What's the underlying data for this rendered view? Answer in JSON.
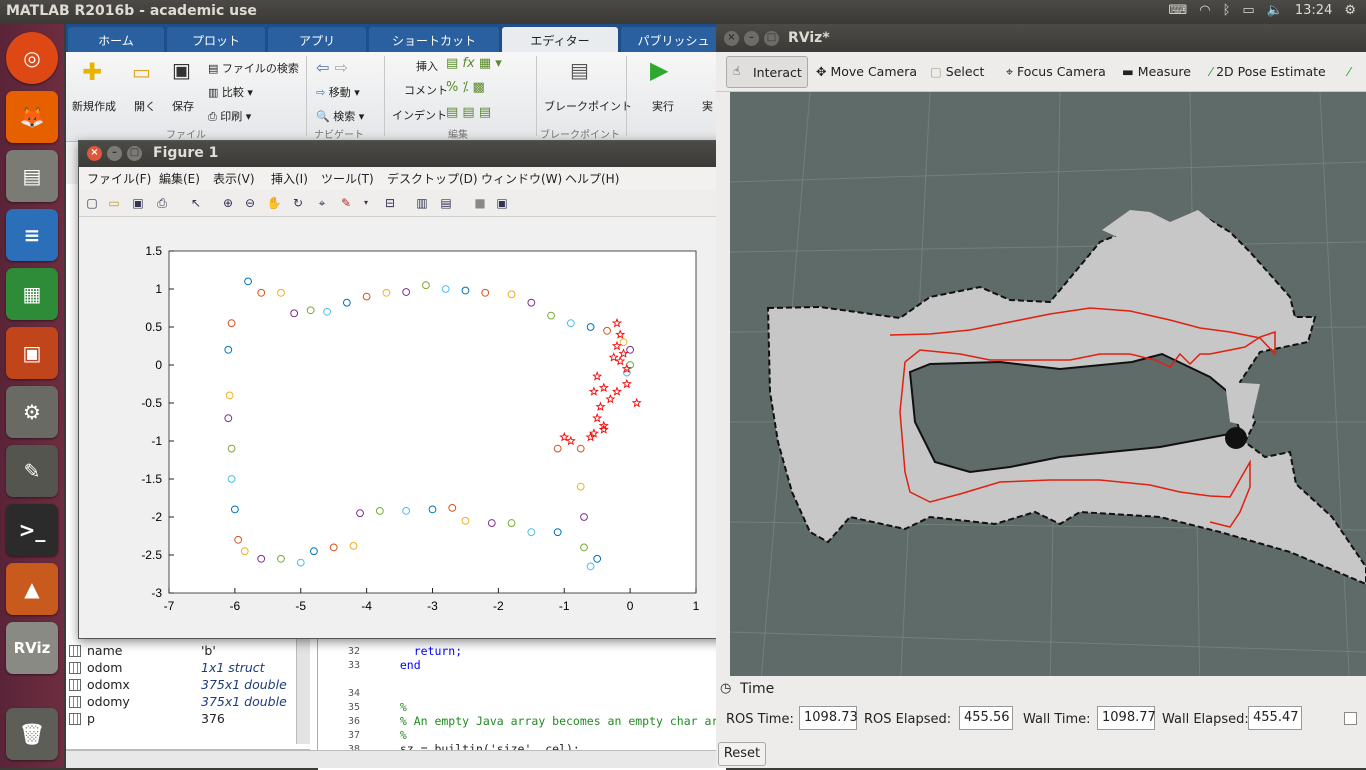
{
  "topbar": {
    "title": "MATLAB R2016b - academic use",
    "clock": "13:24",
    "tray_icons": [
      "keyboard-icon",
      "wifi-icon",
      "bluetooth-icon",
      "battery-icon",
      "volume-icon"
    ]
  },
  "launcher": {
    "items": [
      "ubuntu",
      "firefox",
      "files",
      "writer",
      "calc",
      "impress",
      "settings",
      "text-editor",
      "terminal",
      "matlab",
      "rviz",
      "trash"
    ],
    "rviz_label": "RViz"
  },
  "matlab": {
    "tabs": [
      "ホーム",
      "プロット",
      "アプリ",
      "ショートカット",
      "エディター",
      "パブリッシュ"
    ],
    "active_tab": "エディター",
    "ribbon": {
      "new": "新規作成",
      "open": "開く",
      "save": "保存",
      "find_files": "ファイルの検索",
      "compare": "比較",
      "print": "印刷",
      "goto": "移動",
      "find": "検索",
      "insert": "挿入",
      "comment": "コメント",
      "indent": "インデント",
      "breakpoints": "ブレークポイント",
      "run": "実行",
      "run_advance": "実",
      "group_file": "ファイル",
      "group_nav": "ナビゲート",
      "group_edit": "編集",
      "group_bp": "ブレークポイント"
    },
    "workspace": [
      {
        "name": "name",
        "value": "'b'",
        "type": "char"
      },
      {
        "name": "odom",
        "value": "1x1 struct",
        "type": "struct"
      },
      {
        "name": "odomx",
        "value": "375x1 double",
        "type": "double"
      },
      {
        "name": "odomy",
        "value": "375x1 double",
        "type": "double"
      },
      {
        "name": "p",
        "value": "376",
        "type": "double"
      }
    ],
    "editor_lines": [
      {
        "n": "32",
        "code": "    return;"
      },
      {
        "n": "33",
        "code": "  end"
      },
      {
        "n": "34",
        "code": ""
      },
      {
        "n": "35",
        "code": "  %"
      },
      {
        "n": "36",
        "code": "  % An empty Java array becomes an empty char arr"
      },
      {
        "n": "37",
        "code": "  %"
      },
      {
        "n": "38",
        "code": "  sz = builtin('size', cel);"
      }
    ]
  },
  "figure": {
    "title": "Figure 1",
    "menu": [
      "ファイル(F)",
      "編集(E)",
      "表示(V)",
      "挿入(I)",
      "ツール(T)",
      "デスクトップ(D)",
      "ウィンドウ(W)",
      "ヘルプ(H)"
    ]
  },
  "chart_data": {
    "type": "scatter",
    "xlim": [
      -7,
      1
    ],
    "ylim": [
      -3,
      1.5
    ],
    "xticks": [
      "-7",
      "-6",
      "-5",
      "-4",
      "-3",
      "-2",
      "-1",
      "0",
      "1"
    ],
    "yticks": [
      "1.5",
      "1",
      "0.5",
      "0",
      "-0.5",
      "-1",
      "-1.5",
      "-2",
      "-2.5",
      "-3"
    ],
    "series": [
      {
        "marker": "circle",
        "colors": [
          "#0072bd",
          "#d95319",
          "#edb120",
          "#7e2f8e",
          "#77ac30",
          "#4dbeee"
        ],
        "points": [
          [
            -5.8,
            1.1
          ],
          [
            -5.6,
            0.95
          ],
          [
            -5.3,
            0.95
          ],
          [
            -5.1,
            0.68
          ],
          [
            -4.85,
            0.72
          ],
          [
            -4.6,
            0.7
          ],
          [
            -4.3,
            0.82
          ],
          [
            -4.0,
            0.9
          ],
          [
            -3.7,
            0.95
          ],
          [
            -3.4,
            0.96
          ],
          [
            -3.1,
            1.05
          ],
          [
            -2.8,
            1.0
          ],
          [
            -2.5,
            0.98
          ],
          [
            -2.2,
            0.95
          ],
          [
            -1.8,
            0.93
          ],
          [
            -1.5,
            0.82
          ],
          [
            -1.2,
            0.65
          ],
          [
            -0.9,
            0.55
          ],
          [
            -0.6,
            0.5
          ],
          [
            -0.35,
            0.45
          ],
          [
            -0.1,
            0.3
          ],
          [
            0.0,
            0.2
          ],
          [
            0.0,
            0.0
          ],
          [
            -0.05,
            -0.1
          ],
          [
            -6.1,
            0.2
          ],
          [
            -6.05,
            0.55
          ],
          [
            -6.08,
            -0.4
          ],
          [
            -6.1,
            -0.7
          ],
          [
            -6.05,
            -1.1
          ],
          [
            -6.05,
            -1.5
          ],
          [
            -6.0,
            -1.9
          ],
          [
            -5.95,
            -2.3
          ],
          [
            -5.85,
            -2.45
          ],
          [
            -5.6,
            -2.55
          ],
          [
            -5.3,
            -2.55
          ],
          [
            -5.0,
            -2.6
          ],
          [
            -4.8,
            -2.45
          ],
          [
            -4.5,
            -2.4
          ],
          [
            -4.2,
            -2.38
          ],
          [
            -4.1,
            -1.95
          ],
          [
            -3.8,
            -1.92
          ],
          [
            -3.4,
            -1.92
          ],
          [
            -3.0,
            -1.9
          ],
          [
            -2.7,
            -1.88
          ],
          [
            -2.5,
            -2.05
          ],
          [
            -2.1,
            -2.08
          ],
          [
            -1.8,
            -2.08
          ],
          [
            -1.5,
            -2.2
          ],
          [
            -1.1,
            -2.2
          ],
          [
            -0.75,
            -1.1
          ],
          [
            -0.75,
            -1.6
          ],
          [
            -0.7,
            -2.0
          ],
          [
            -0.7,
            -2.4
          ],
          [
            -0.6,
            -2.65
          ],
          [
            -0.5,
            -2.55
          ],
          [
            -1.1,
            -1.1
          ]
        ]
      },
      {
        "marker": "star",
        "color": "#ff0000",
        "points": [
          [
            -0.2,
            0.55
          ],
          [
            -0.15,
            0.4
          ],
          [
            -0.2,
            0.25
          ],
          [
            -0.1,
            0.15
          ],
          [
            -0.25,
            0.1
          ],
          [
            -0.15,
            0.05
          ],
          [
            -0.05,
            -0.05
          ],
          [
            -0.5,
            -0.15
          ],
          [
            -0.4,
            -0.3
          ],
          [
            -0.55,
            -0.35
          ],
          [
            -0.45,
            -0.55
          ],
          [
            -0.3,
            -0.45
          ],
          [
            -0.2,
            -0.35
          ],
          [
            -0.05,
            -0.25
          ],
          [
            0.1,
            -0.5
          ],
          [
            -0.5,
            -0.7
          ],
          [
            -0.4,
            -0.8
          ],
          [
            -0.55,
            -0.9
          ],
          [
            -0.6,
            -0.95
          ],
          [
            -0.4,
            -0.85
          ],
          [
            -0.9,
            -1.0
          ],
          [
            -1.0,
            -0.95
          ]
        ]
      }
    ]
  },
  "rviz": {
    "title": "RViz*",
    "tools": [
      "Interact",
      "Move Camera",
      "Select",
      "Focus Camera",
      "Measure",
      "2D Pose Estimate"
    ],
    "active_tool": "Interact",
    "time": {
      "panel_title": "Time",
      "ros_time_label": "ROS Time:",
      "ros_time": "1098.73",
      "ros_elapsed_label": "ROS Elapsed:",
      "ros_elapsed": "455.56",
      "wall_time_label": "Wall Time:",
      "wall_time": "1098.77",
      "wall_elapsed_label": "Wall Elapsed:",
      "wall_elapsed": "455.47",
      "reset": "Reset"
    }
  }
}
